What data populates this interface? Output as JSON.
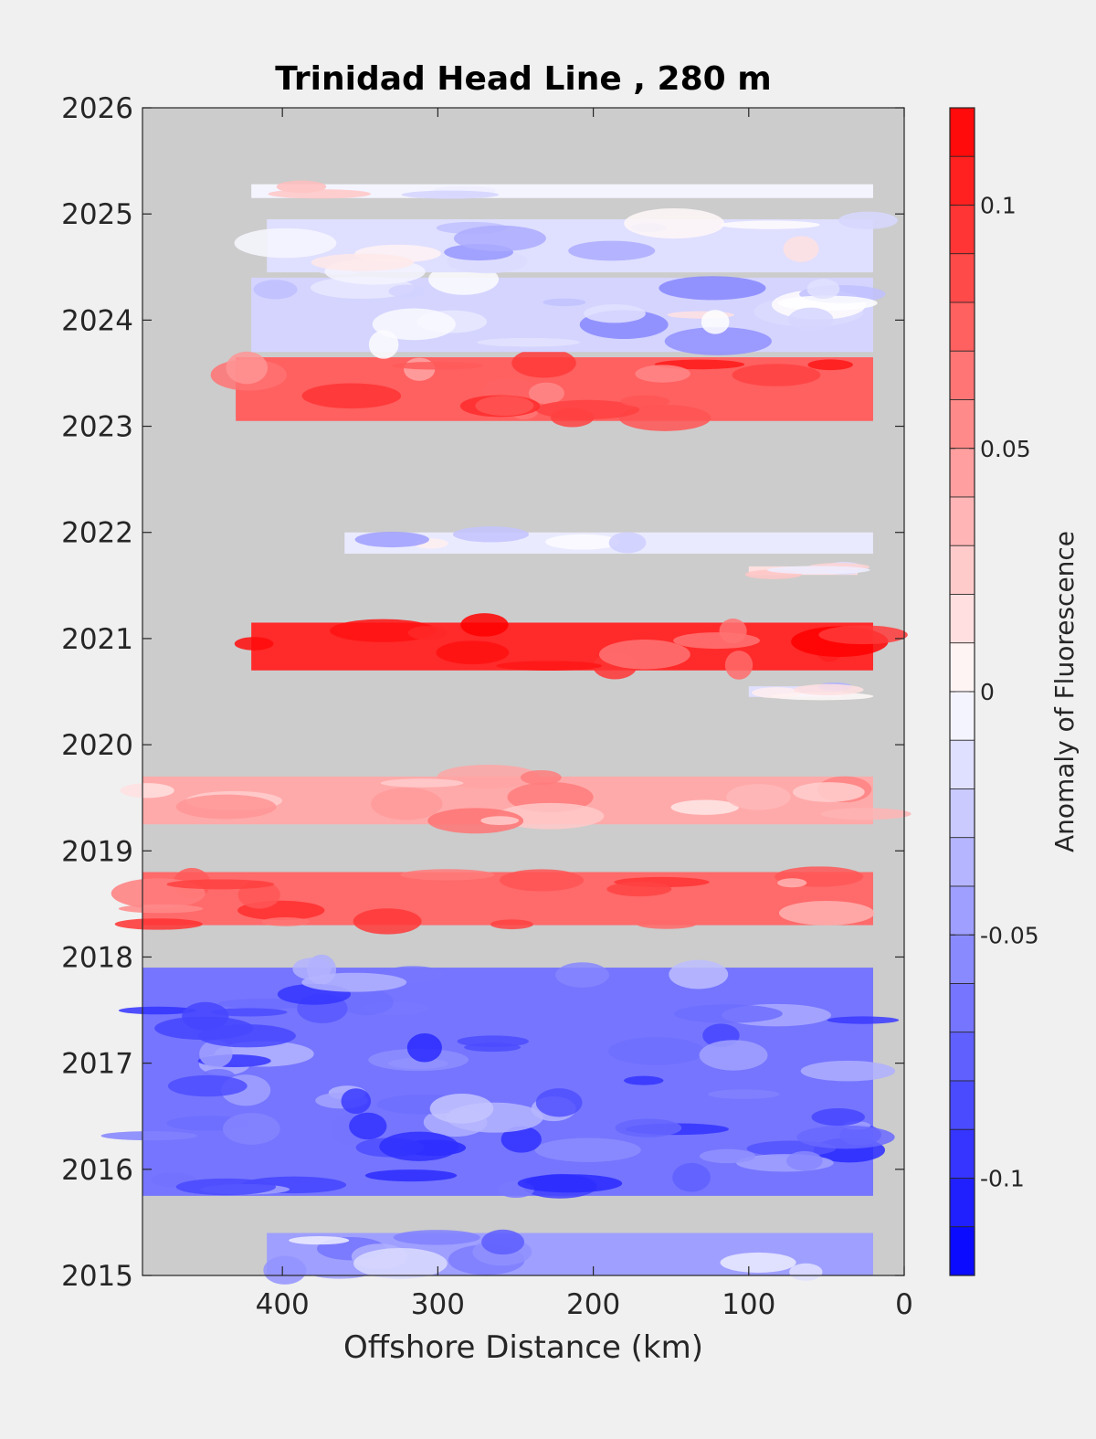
{
  "chart_data": {
    "type": "heatmap",
    "title": "Trinidad Head Line , 280 m",
    "xlabel": "Offshore Distance (km)",
    "ylabel": "",
    "colorbar_label": "Anomaly of Fluorescence",
    "x_reversed": true,
    "xlim": [
      0,
      490
    ],
    "ylim": [
      2015,
      2026
    ],
    "xticks": [
      400,
      300,
      200,
      100,
      0
    ],
    "yticks": [
      2015,
      2016,
      2017,
      2018,
      2019,
      2020,
      2021,
      2022,
      2023,
      2024,
      2025,
      2026
    ],
    "colorbar_ticks": [
      0.1,
      0.05,
      0,
      -0.05,
      -0.1
    ],
    "clim": [
      -0.12,
      0.12
    ],
    "colormap": {
      "low": "#0000ff",
      "mid": "#ffffff",
      "high": "#ff0000",
      "nan": "#cccccc"
    },
    "bands": [
      {
        "t0": 2015.0,
        "t1": 2015.4,
        "x_near": 20,
        "x_far": 410,
        "mean": -0.045
      },
      {
        "t0": 2015.75,
        "t1": 2017.9,
        "x_near": 20,
        "x_far": 490,
        "mean": -0.065
      },
      {
        "t0": 2018.3,
        "t1": 2018.8,
        "x_near": 20,
        "x_far": 490,
        "mean": 0.07
      },
      {
        "t0": 2019.25,
        "t1": 2019.7,
        "x_near": 20,
        "x_far": 490,
        "mean": 0.04
      },
      {
        "t0": 2020.45,
        "t1": 2020.55,
        "x_near": 40,
        "x_far": 100,
        "mean": -0.015
      },
      {
        "t0": 2020.7,
        "t1": 2021.15,
        "x_near": 20,
        "x_far": 420,
        "mean": 0.1
      },
      {
        "t0": 2021.6,
        "t1": 2021.68,
        "x_near": 30,
        "x_far": 100,
        "mean": 0.015
      },
      {
        "t0": 2021.8,
        "t1": 2022.0,
        "x_near": 20,
        "x_far": 360,
        "mean": -0.01
      },
      {
        "t0": 2023.05,
        "t1": 2023.65,
        "x_near": 20,
        "x_far": 430,
        "mean": 0.075
      },
      {
        "t0": 2023.7,
        "t1": 2024.4,
        "x_near": 20,
        "x_far": 420,
        "mean": -0.02
      },
      {
        "t0": 2024.45,
        "t1": 2024.95,
        "x_near": 20,
        "x_far": 410,
        "mean": -0.015
      },
      {
        "t0": 2025.15,
        "t1": 2025.28,
        "x_near": 20,
        "x_far": 420,
        "mean": -0.005
      }
    ]
  }
}
